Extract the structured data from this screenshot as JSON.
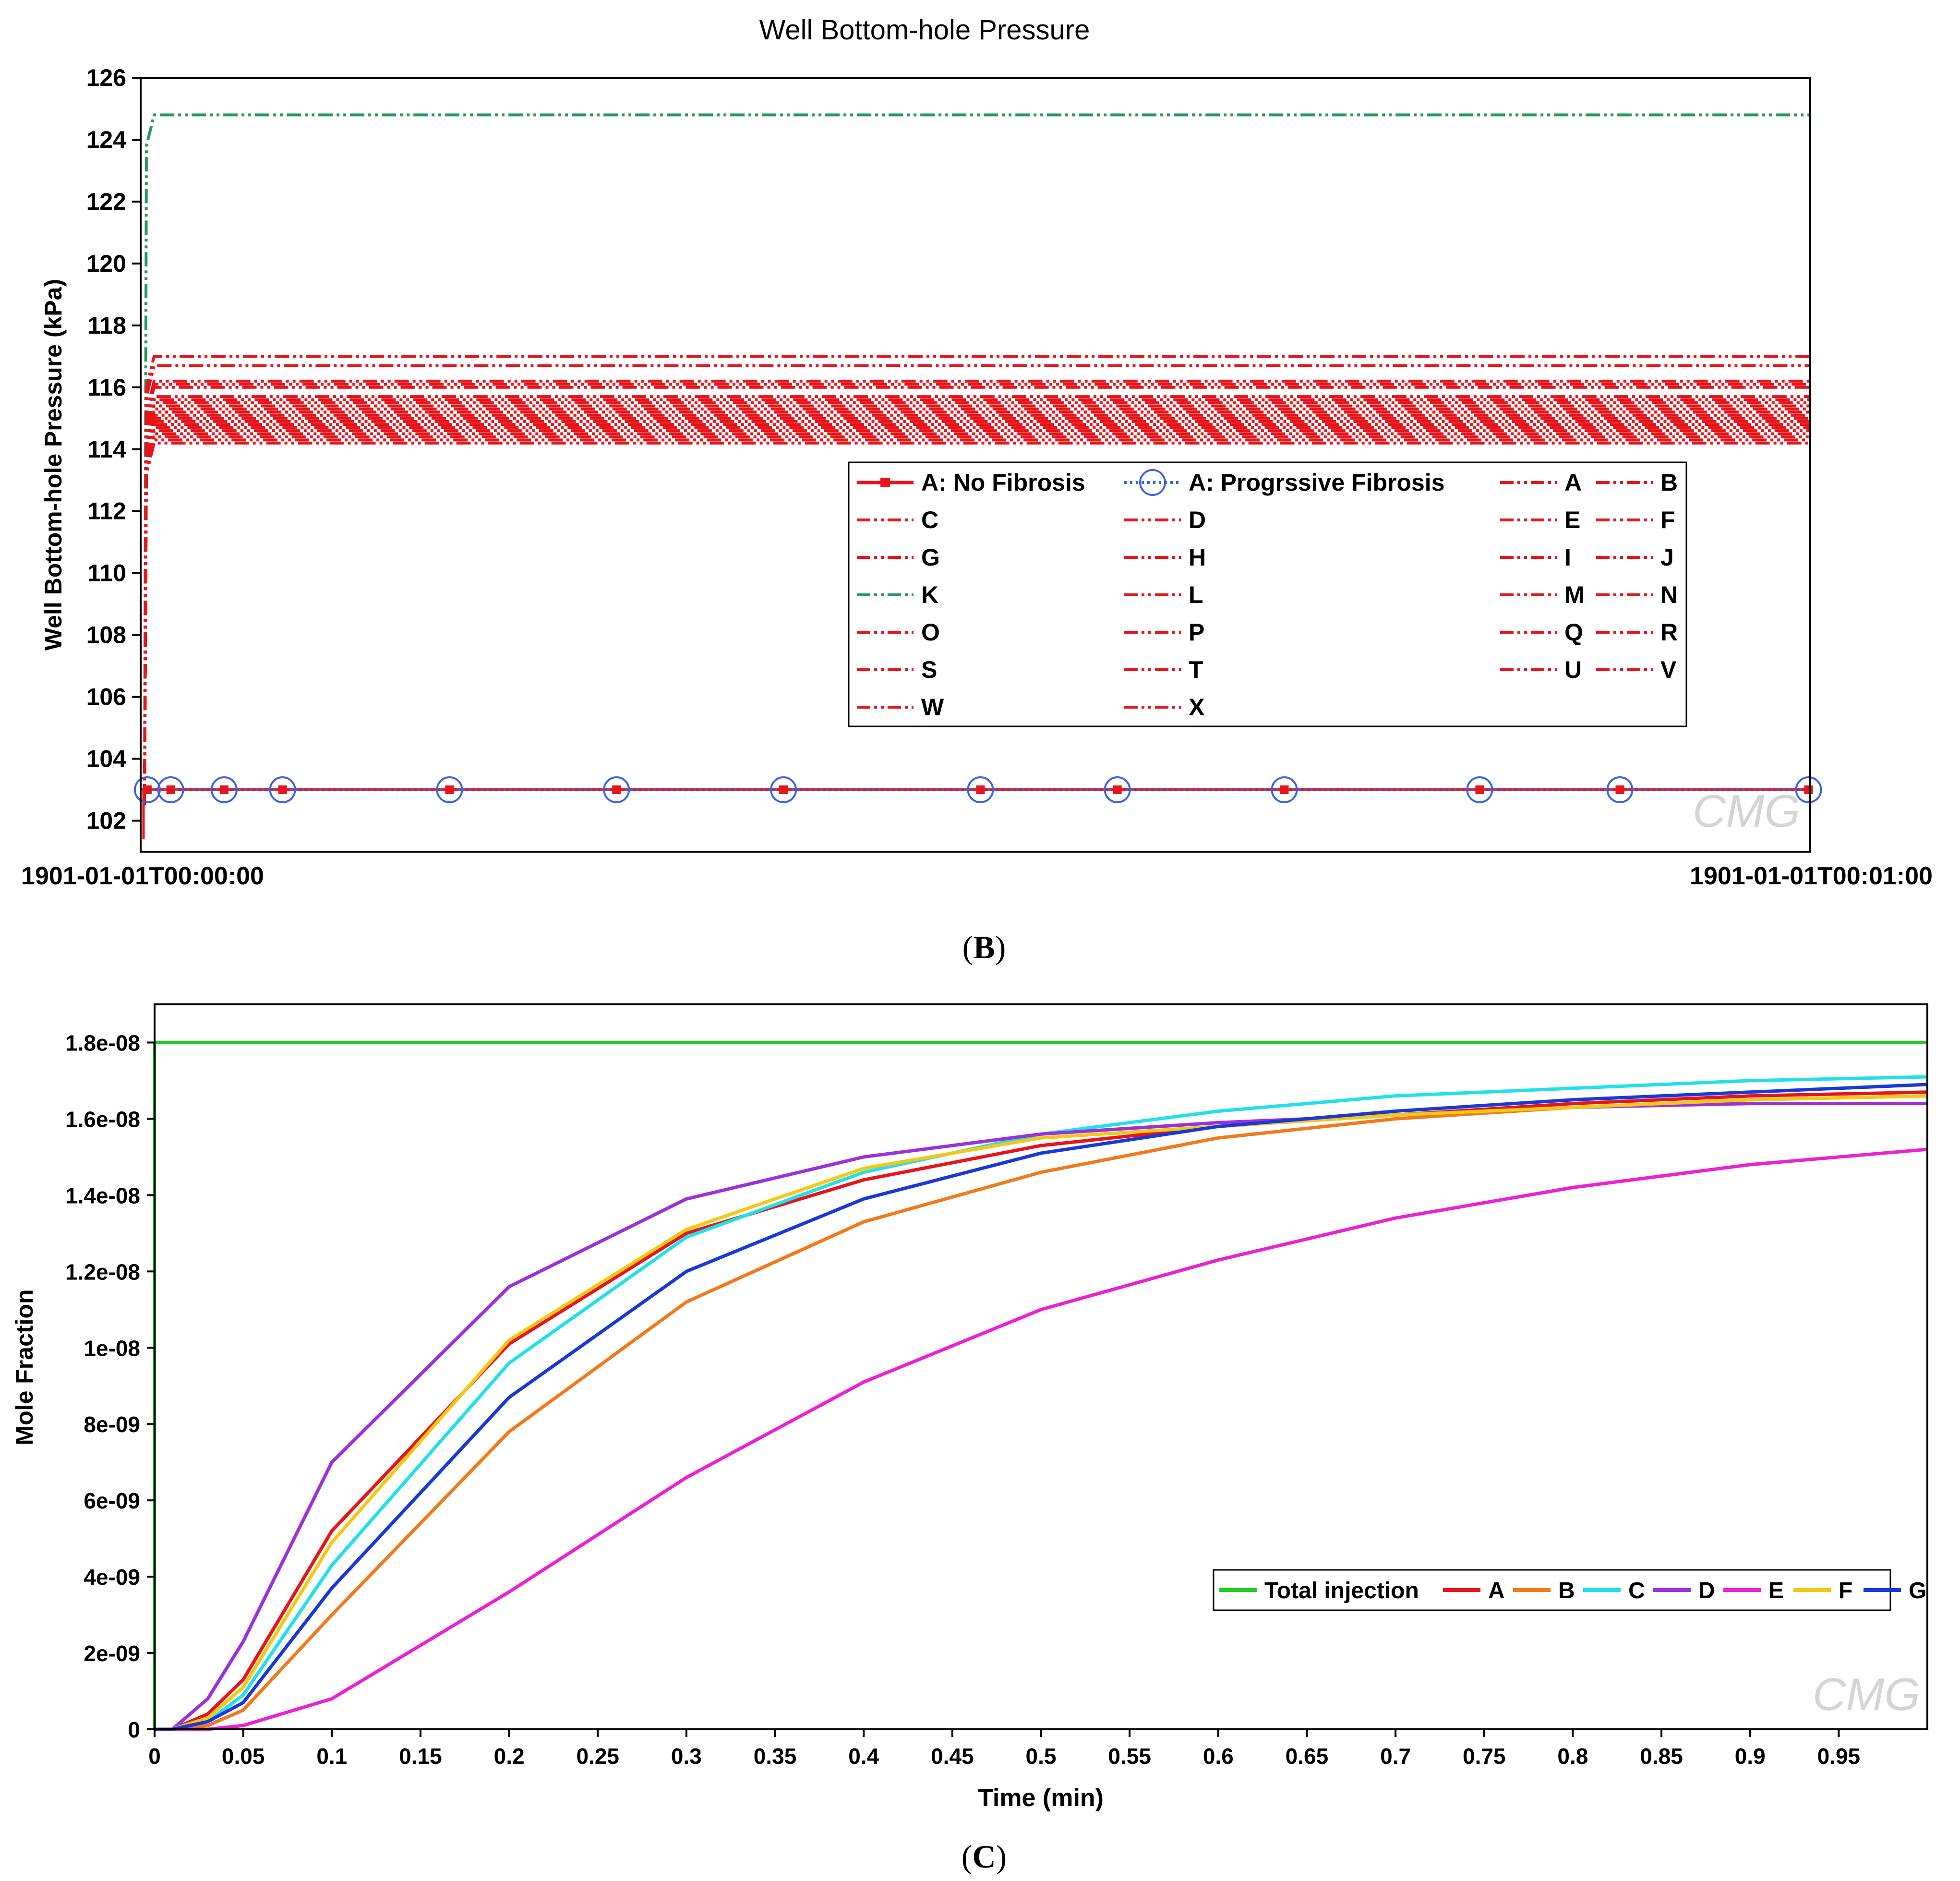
{
  "chart_data": [
    {
      "type": "line",
      "panel_label": "B",
      "title": "Well Bottom-hole Pressure",
      "ylabel": "Well Bottom-hole Pressure (kPa)",
      "xlabel": "",
      "ylim": [
        101,
        126
      ],
      "yticks": [
        102,
        104,
        106,
        108,
        110,
        112,
        114,
        116,
        118,
        120,
        122,
        124,
        126
      ],
      "xtick_labels": [
        "1901-01-01T00:00:00",
        "1901-01-01T00:01:00"
      ],
      "xlim": [
        0,
        1
      ],
      "watermark": "CMG",
      "series": [
        {
          "name": "A: No Fibrosis",
          "color": "#e8141b",
          "style": "solid-square",
          "value": 103.0
        },
        {
          "name": "A: Progrssive Fibrosis",
          "color": "#3b63e0",
          "style": "dotted-circle",
          "value": 103.0
        },
        {
          "name": "A",
          "color": "#e8141b",
          "style": "dash-dot-dot",
          "value": 115.2
        },
        {
          "name": "B",
          "color": "#e8141b",
          "style": "dash-dot-dot",
          "value": 114.4
        },
        {
          "name": "C",
          "color": "#e8141b",
          "style": "dash-dot-dot",
          "value": 115.0
        },
        {
          "name": "D",
          "color": "#e8141b",
          "style": "dash-dot-dot",
          "value": 114.7
        },
        {
          "name": "E",
          "color": "#e8141b",
          "style": "dash-dot-dot",
          "value": 115.5
        },
        {
          "name": "F",
          "color": "#e8141b",
          "style": "dash-dot-dot",
          "value": 114.9
        },
        {
          "name": "G",
          "color": "#e8141b",
          "style": "dash-dot-dot",
          "value": 116.2
        },
        {
          "name": "H",
          "color": "#e8141b",
          "style": "dash-dot-dot",
          "value": 115.3
        },
        {
          "name": "I",
          "color": "#e8141b",
          "style": "dash-dot-dot",
          "value": 114.6
        },
        {
          "name": "J",
          "color": "#e8141b",
          "style": "dash-dot-dot",
          "value": 115.1
        },
        {
          "name": "K",
          "color": "#239a5a",
          "style": "dash-dot-dot",
          "value": 124.8
        },
        {
          "name": "L",
          "color": "#e8141b",
          "style": "dash-dot-dot",
          "value": 116.7
        },
        {
          "name": "M",
          "color": "#e8141b",
          "style": "dash-dot-dot",
          "value": 114.3
        },
        {
          "name": "N",
          "color": "#e8141b",
          "style": "dash-dot-dot",
          "value": 115.4
        },
        {
          "name": "O",
          "color": "#e8141b",
          "style": "dash-dot-dot",
          "value": 117.0
        },
        {
          "name": "P",
          "color": "#e8141b",
          "style": "dash-dot-dot",
          "value": 114.8
        },
        {
          "name": "Q",
          "color": "#e8141b",
          "style": "dash-dot-dot",
          "value": 115.6
        },
        {
          "name": "R",
          "color": "#e8141b",
          "style": "dash-dot-dot",
          "value": 116.0
        },
        {
          "name": "S",
          "color": "#e8141b",
          "style": "dash-dot-dot",
          "value": 114.5
        },
        {
          "name": "T",
          "color": "#e8141b",
          "style": "dash-dot-dot",
          "value": 115.2
        },
        {
          "name": "U",
          "color": "#e8141b",
          "style": "dash-dot-dot",
          "value": 114.9
        },
        {
          "name": "V",
          "color": "#e8141b",
          "style": "dash-dot-dot",
          "value": 115.7
        },
        {
          "name": "W",
          "color": "#e8141b",
          "style": "dash-dot-dot",
          "value": 114.2
        },
        {
          "name": "X",
          "color": "#e8141b",
          "style": "dash-dot-dot",
          "value": 116.1
        }
      ]
    },
    {
      "type": "line",
      "panel_label": "C",
      "title": "",
      "xlabel": "Time (min)",
      "ylabel": "Mole Fraction",
      "xlim": [
        0,
        1
      ],
      "ylim": [
        0,
        1.9e-08
      ],
      "xticks": [
        0,
        0.05,
        0.1,
        0.15,
        0.2,
        0.25,
        0.3,
        0.35,
        0.4,
        0.45,
        0.5,
        0.55,
        0.6,
        0.65,
        0.7,
        0.75,
        0.8,
        0.85,
        0.9,
        0.95
      ],
      "xtick_labels": [
        "0",
        "0.05",
        "0.1",
        "0.15",
        "0.2",
        "0.25",
        "0.3",
        "0.35",
        "0.4",
        "0.45",
        "0.5",
        "0.55",
        "0.6",
        "0.65",
        "0.7",
        "0.75",
        "0.8",
        "0.85",
        "0.9",
        "0.95"
      ],
      "yticks": [
        0,
        2e-09,
        4e-09,
        6e-09,
        8e-09,
        1e-08,
        1.2e-08,
        1.4e-08,
        1.6e-08,
        1.8e-08
      ],
      "ytick_labels": [
        "0",
        "2e-09",
        "4e-09",
        "6e-09",
        "8e-09",
        "1e-08",
        "1.2e-08",
        "1.4e-08",
        "1.6e-08",
        "1.8e-08"
      ],
      "x": [
        0,
        0.01,
        0.03,
        0.05,
        0.1,
        0.2,
        0.3,
        0.4,
        0.5,
        0.6,
        0.7,
        0.8,
        0.9,
        1.0
      ],
      "watermark": "CMG",
      "series": [
        {
          "name": "Total injection",
          "color": "#22cc22",
          "values": [
            1.8e-08,
            1.8e-08,
            1.8e-08,
            1.8e-08,
            1.8e-08,
            1.8e-08,
            1.8e-08,
            1.8e-08,
            1.8e-08,
            1.8e-08,
            1.8e-08,
            1.8e-08,
            1.8e-08,
            1.8e-08
          ]
        },
        {
          "name": "A",
          "color": "#e8141b",
          "values": [
            0,
            0,
            4e-10,
            1.3e-09,
            5.2e-09,
            1.01e-08,
            1.3e-08,
            1.44e-08,
            1.53e-08,
            1.58e-08,
            1.61e-08,
            1.64e-08,
            1.66e-08,
            1.67e-08
          ]
        },
        {
          "name": "B",
          "color": "#f07a1c",
          "values": [
            0,
            0,
            1e-10,
            5e-10,
            3e-09,
            7.8e-09,
            1.12e-08,
            1.33e-08,
            1.46e-08,
            1.55e-08,
            1.6e-08,
            1.63e-08,
            1.65e-08,
            1.66e-08
          ]
        },
        {
          "name": "C",
          "color": "#22e0ea",
          "values": [
            0,
            0,
            2e-10,
            9e-10,
            4.3e-09,
            9.6e-09,
            1.29e-08,
            1.46e-08,
            1.56e-08,
            1.62e-08,
            1.66e-08,
            1.68e-08,
            1.7e-08,
            1.71e-08
          ]
        },
        {
          "name": "D",
          "color": "#9a32d8",
          "values": [
            0,
            0,
            8e-10,
            2.3e-09,
            7e-09,
            1.16e-08,
            1.39e-08,
            1.5e-08,
            1.56e-08,
            1.59e-08,
            1.61e-08,
            1.63e-08,
            1.64e-08,
            1.64e-08
          ]
        },
        {
          "name": "E",
          "color": "#ea22d2",
          "values": [
            0,
            0,
            0,
            1e-10,
            8e-10,
            3.6e-09,
            6.6e-09,
            9.1e-09,
            1.1e-08,
            1.23e-08,
            1.34e-08,
            1.42e-08,
            1.48e-08,
            1.52e-08
          ]
        },
        {
          "name": "F",
          "color": "#f2c914",
          "values": [
            0,
            0,
            3e-10,
            1.1e-09,
            4.9e-09,
            1.02e-08,
            1.31e-08,
            1.47e-08,
            1.55e-08,
            1.58e-08,
            1.61e-08,
            1.63e-08,
            1.65e-08,
            1.66e-08
          ]
        },
        {
          "name": "G",
          "color": "#1838d8",
          "values": [
            0,
            0,
            2e-10,
            7e-10,
            3.7e-09,
            8.7e-09,
            1.2e-08,
            1.39e-08,
            1.51e-08,
            1.58e-08,
            1.62e-08,
            1.65e-08,
            1.67e-08,
            1.69e-08
          ]
        }
      ]
    }
  ]
}
